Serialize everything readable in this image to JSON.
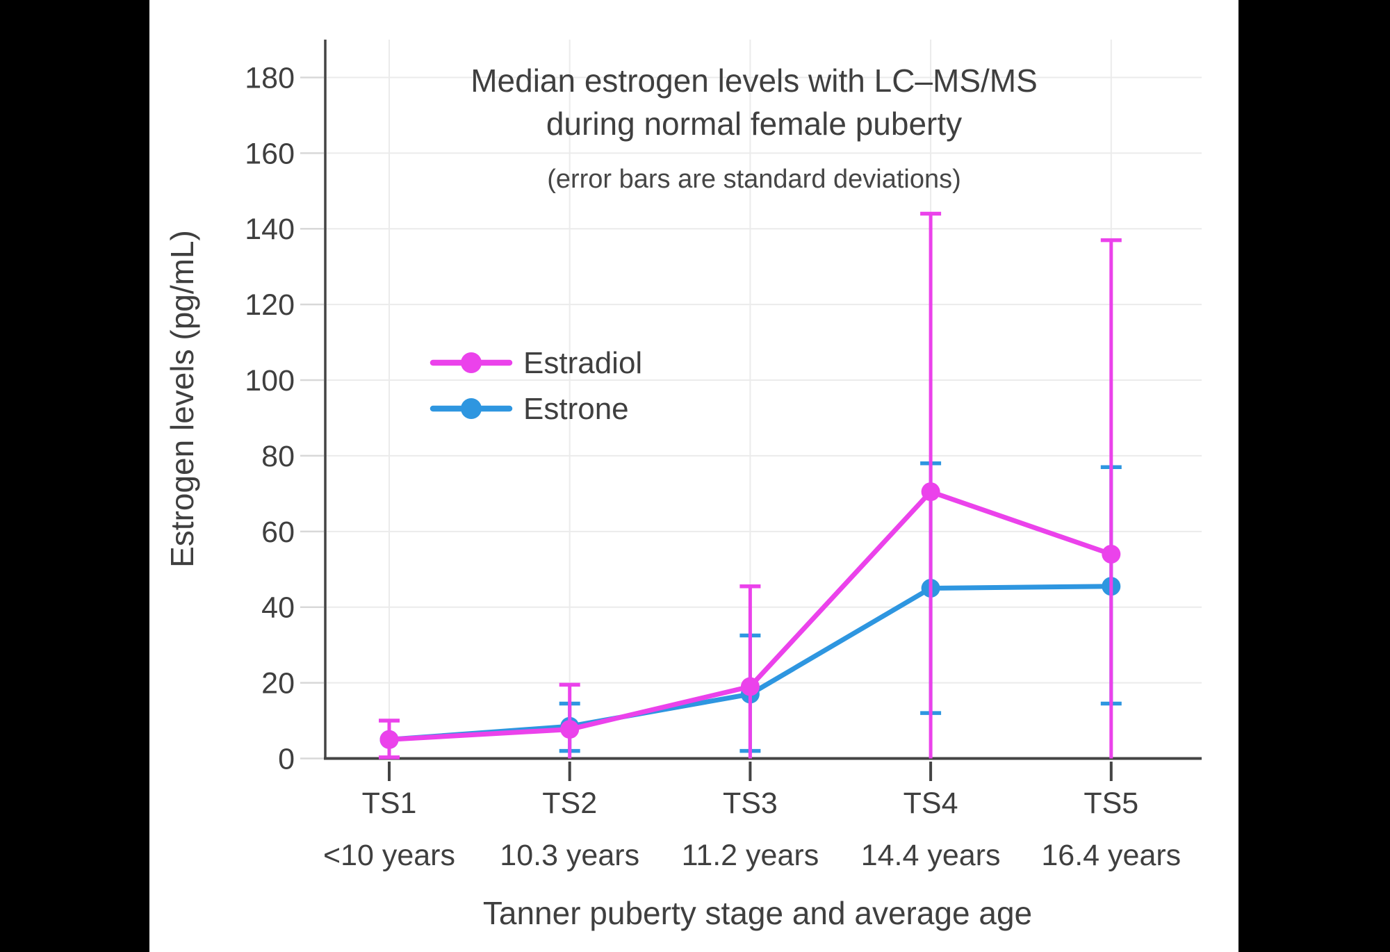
{
  "chart_data": {
    "type": "line",
    "title_lines": [
      "Median estrogen levels with LC–MS/MS",
      "during normal female puberty"
    ],
    "subtitle": "(error bars are standard deviations)",
    "xlabel": "Tanner puberty stage and average age",
    "ylabel": "Estrogen levels (pg/mL)",
    "categories": [
      "TS1",
      "TS2",
      "TS3",
      "TS4",
      "TS5"
    ],
    "category_sublabels": [
      "<10 years",
      "10.3 years",
      "11.2 years",
      "14.4 years",
      "16.4 years"
    ],
    "y_ticks": [
      0,
      20,
      40,
      60,
      80,
      100,
      120,
      140,
      160,
      180
    ],
    "ylim": [
      0,
      190
    ],
    "grid": true,
    "legend_position": "inside-upper-left",
    "error_bar_meaning": "standard deviations",
    "series": [
      {
        "name": "Estradiol",
        "color": "#EB42EB",
        "values": [
          5,
          7.7,
          19,
          70.5,
          54
        ],
        "error_low": [
          0.3,
          0,
          0,
          0,
          0
        ],
        "error_high": [
          10,
          19.5,
          45.5,
          144,
          137
        ],
        "error_cap_low": [
          true,
          false,
          false,
          false,
          false
        ]
      },
      {
        "name": "Estrone",
        "color": "#2E96E0",
        "values": [
          5,
          8.5,
          17,
          45,
          45.5
        ],
        "error_low": [
          null,
          2,
          2,
          12,
          14.5
        ],
        "error_high": [
          null,
          14.5,
          32.5,
          78,
          77
        ]
      }
    ]
  },
  "colors": {
    "background_bars": "#000000",
    "plot_background": "#ffffff",
    "gridline": "#ebebeb",
    "axis_line": "#444444",
    "y_tick": "#d8d8d8",
    "text": "#3f3f3f"
  }
}
